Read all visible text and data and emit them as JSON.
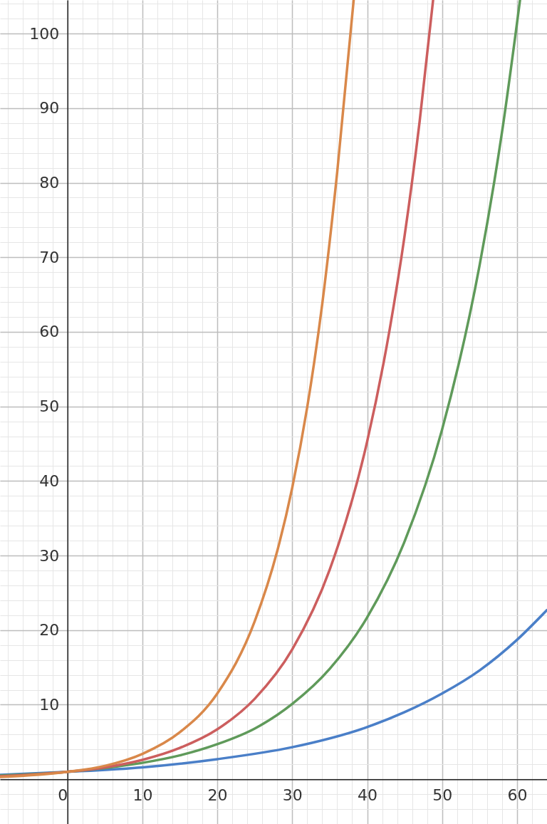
{
  "chart_data": {
    "type": "line",
    "grid": true,
    "xlim": [
      -9,
      64
    ],
    "ylim": [
      -6,
      104.5
    ],
    "xticks": [
      0,
      10,
      20,
      30,
      40,
      50,
      60
    ],
    "yticks": [
      {
        "value": 0,
        "label": null
      },
      10,
      20,
      30,
      40,
      50,
      60,
      70,
      80,
      90,
      100
    ],
    "series": [
      {
        "color": "#4a7fc8",
        "x": [
          -9,
          0,
          10,
          20,
          30,
          40,
          45,
          50,
          55,
          60,
          64
        ],
        "values": [
          0.6,
          1,
          1.6,
          2.7,
          4.3,
          7.0,
          9.0,
          11.5,
          14.6,
          18.7,
          22.7
        ]
      },
      {
        "color": "#5f9a5a",
        "x": [
          -9,
          0,
          5,
          10,
          15,
          20,
          25,
          30,
          35,
          40,
          45,
          50,
          55,
          58,
          60.4
        ],
        "values": [
          0.5,
          1,
          1.5,
          2.2,
          3.2,
          4.7,
          6.8,
          10.1,
          14.8,
          21.7,
          31.9,
          46.9,
          68.9,
          86.8,
          104.5
        ]
      },
      {
        "color": "#cc5e5e",
        "x": [
          -9,
          0,
          5,
          10,
          15,
          20,
          25,
          30,
          35,
          40,
          43,
          45,
          47,
          48.8
        ],
        "values": [
          0.4,
          1,
          1.6,
          2.6,
          4.2,
          6.7,
          10.8,
          17.4,
          28.1,
          45.3,
          60.3,
          72.9,
          88.2,
          104.5
        ]
      },
      {
        "color": "#d9884a",
        "x": [
          -9,
          0,
          5,
          10,
          15,
          20,
          25,
          28,
          30,
          32,
          34,
          36,
          38.2
        ],
        "values": [
          0.3,
          1,
          1.8,
          3.4,
          6.3,
          11.5,
          21.2,
          30.6,
          39.1,
          49.9,
          63.7,
          81.4,
          104.5
        ]
      }
    ]
  }
}
